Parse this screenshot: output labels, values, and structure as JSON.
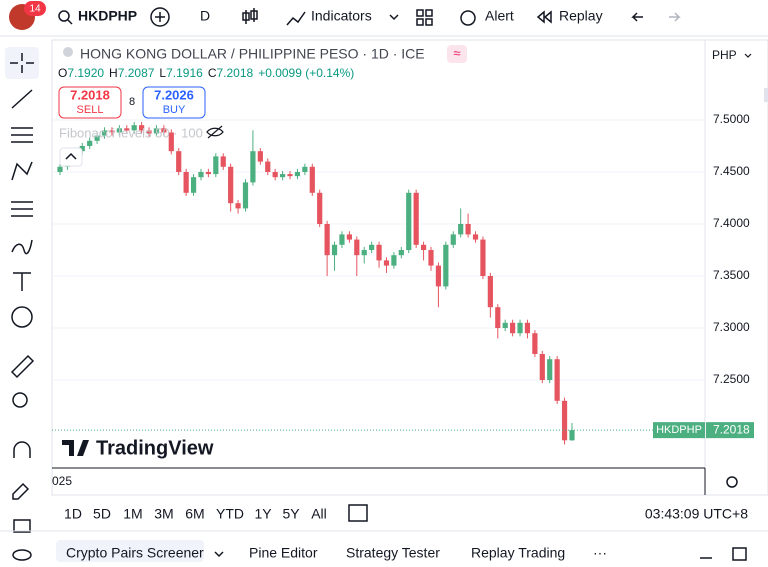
{
  "topbar": {
    "badge": "14",
    "symbol": "HKDPHP",
    "interval": "D",
    "indicators": "Indicators",
    "alert": "Alert",
    "replay": "Replay"
  },
  "header": {
    "title": "HONG KONG DOLLAR / PHILIPPINE PESO · 1D · ICE",
    "o_label": "O",
    "o": "7.1920",
    "h_label": "H",
    "h": "7.2087",
    "l_label": "L",
    "l": "7.1916",
    "c_label": "C",
    "c": "7.2018",
    "change": "+0.0099 (+0.14%)"
  },
  "trade": {
    "sell_price": "7.2018",
    "sell": "SELL",
    "spread": "8",
    "buy_price": "7.2026",
    "buy": "BUY"
  },
  "indicator_legend": "Fibonacci levels 50 · 100",
  "chart": {
    "currency": "PHP",
    "ylim": [
      7.1654,
      7.5769
    ],
    "yticks": [
      {
        "value": 7.5,
        "label": "7.5000"
      },
      {
        "value": 7.45,
        "label": "7.4500"
      },
      {
        "value": 7.4,
        "label": "7.4000"
      },
      {
        "value": 7.35,
        "label": "7.3500"
      },
      {
        "value": 7.3,
        "label": "7.3000"
      },
      {
        "value": 7.25,
        "label": "7.2500"
      }
    ],
    "last_symbol": "HKDPHP",
    "last_price": {
      "value": 7.2018,
      "label": "7.2018"
    },
    "up_color": "#4caf80",
    "down_color": "#e5545f",
    "candles": [
      [
        7.45,
        7.458,
        7.447,
        7.455
      ],
      [
        7.455,
        7.463,
        7.452,
        7.46
      ],
      [
        7.46,
        7.473,
        7.457,
        7.47
      ],
      [
        7.47,
        7.478,
        7.467,
        7.475
      ],
      [
        7.475,
        7.483,
        7.472,
        7.48
      ],
      [
        7.48,
        7.488,
        7.477,
        7.485
      ],
      [
        7.485,
        7.493,
        7.482,
        7.49
      ],
      [
        7.49,
        7.493,
        7.485,
        7.488
      ],
      [
        7.488,
        7.495,
        7.485,
        7.492
      ],
      [
        7.492,
        7.495,
        7.487,
        7.49
      ],
      [
        7.49,
        7.498,
        7.487,
        7.495
      ],
      [
        7.495,
        7.498,
        7.487,
        7.49
      ],
      [
        7.49,
        7.493,
        7.484,
        7.487
      ],
      [
        7.487,
        7.495,
        7.484,
        7.492
      ],
      [
        7.492,
        7.495,
        7.485,
        7.488
      ],
      [
        7.488,
        7.491,
        7.467,
        7.47
      ],
      [
        7.47,
        7.473,
        7.447,
        7.45
      ],
      [
        7.45,
        7.453,
        7.427,
        7.43
      ],
      [
        7.43,
        7.448,
        7.427,
        7.445
      ],
      [
        7.445,
        7.453,
        7.442,
        7.45
      ],
      [
        7.45,
        7.453,
        7.445,
        7.448
      ],
      [
        7.448,
        7.468,
        7.445,
        7.465
      ],
      [
        7.465,
        7.468,
        7.452,
        7.455
      ],
      [
        7.455,
        7.458,
        7.412,
        7.42
      ],
      [
        7.42,
        7.423,
        7.41,
        7.415
      ],
      [
        7.415,
        7.443,
        7.412,
        7.44
      ],
      [
        7.44,
        7.49,
        7.437,
        7.47
      ],
      [
        7.47,
        7.473,
        7.457,
        7.46
      ],
      [
        7.46,
        7.463,
        7.447,
        7.45
      ],
      [
        7.45,
        7.453,
        7.442,
        7.445
      ],
      [
        7.445,
        7.451,
        7.442,
        7.448
      ],
      [
        7.448,
        7.451,
        7.443,
        7.446
      ],
      [
        7.446,
        7.453,
        7.443,
        7.45
      ],
      [
        7.45,
        7.458,
        7.447,
        7.455
      ],
      [
        7.455,
        7.458,
        7.427,
        7.43
      ],
      [
        7.43,
        7.433,
        7.397,
        7.4
      ],
      [
        7.4,
        7.403,
        7.35,
        7.37
      ],
      [
        7.37,
        7.383,
        7.355,
        7.38
      ],
      [
        7.38,
        7.393,
        7.377,
        7.39
      ],
      [
        7.39,
        7.393,
        7.382,
        7.385
      ],
      [
        7.385,
        7.388,
        7.35,
        7.37
      ],
      [
        7.37,
        7.378,
        7.362,
        7.375
      ],
      [
        7.375,
        7.383,
        7.372,
        7.38
      ],
      [
        7.38,
        7.383,
        7.358,
        7.365
      ],
      [
        7.365,
        7.368,
        7.353,
        7.36
      ],
      [
        7.36,
        7.373,
        7.357,
        7.37
      ],
      [
        7.37,
        7.378,
        7.367,
        7.375
      ],
      [
        7.375,
        7.433,
        7.372,
        7.43
      ],
      [
        7.43,
        7.433,
        7.377,
        7.38
      ],
      [
        7.38,
        7.383,
        7.365,
        7.375
      ],
      [
        7.375,
        7.378,
        7.355,
        7.36
      ],
      [
        7.36,
        7.363,
        7.32,
        7.34
      ],
      [
        7.34,
        7.383,
        7.337,
        7.38
      ],
      [
        7.38,
        7.393,
        7.377,
        7.39
      ],
      [
        7.39,
        7.415,
        7.387,
        7.4
      ],
      [
        7.4,
        7.41,
        7.387,
        7.39
      ],
      [
        7.39,
        7.393,
        7.382,
        7.385
      ],
      [
        7.385,
        7.388,
        7.347,
        7.35
      ],
      [
        7.35,
        7.353,
        7.31,
        7.32
      ],
      [
        7.32,
        7.323,
        7.29,
        7.3
      ],
      [
        7.3,
        7.308,
        7.297,
        7.305
      ],
      [
        7.305,
        7.308,
        7.292,
        7.295
      ],
      [
        7.295,
        7.308,
        7.292,
        7.305
      ],
      [
        7.305,
        7.308,
        7.29,
        7.295
      ],
      [
        7.295,
        7.298,
        7.272,
        7.275
      ],
      [
        7.275,
        7.278,
        7.247,
        7.25
      ],
      [
        7.25,
        7.273,
        7.247,
        7.27
      ],
      [
        7.27,
        7.273,
        7.227,
        7.23
      ],
      [
        7.23,
        7.233,
        7.188,
        7.192
      ],
      [
        7.192,
        7.2087,
        7.1916,
        7.2018
      ]
    ]
  },
  "logo": "TradingView",
  "time_axis_label": "025",
  "timeframes": [
    "1D",
    "5D",
    "1M",
    "3M",
    "6M",
    "YTD",
    "1Y",
    "5Y",
    "All"
  ],
  "clock": "03:43:09 UTC+8",
  "bottom_tabs": [
    "Crypto Pairs Screener",
    "Pine Editor",
    "Strategy Tester",
    "Replay Trading"
  ]
}
